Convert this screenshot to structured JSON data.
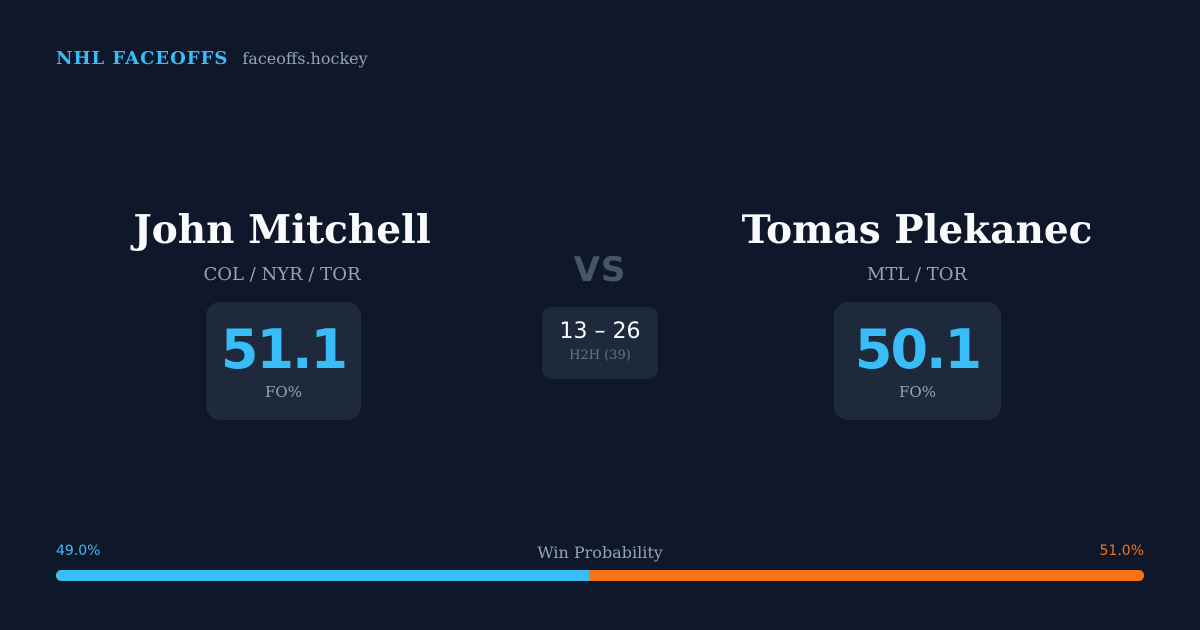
{
  "brand": {
    "name": "NHL FACEOFFS",
    "url": "faceoffs.hockey"
  },
  "players": [
    {
      "name": "John Mitchell",
      "teams": "COL / NYR / TOR",
      "fo_pct": "51.1",
      "fo_label": "FO%"
    },
    {
      "name": "Tomas Plekanec",
      "teams": "MTL / TOR",
      "fo_pct": "50.1",
      "fo_label": "FO%"
    }
  ],
  "matchup": {
    "vs_label": "VS",
    "h2h_score": "13 – 26",
    "h2h_label": "H2H (39)"
  },
  "win_probability": {
    "title": "Win Probability",
    "left_label": "49.0%",
    "right_label": "51.0%",
    "left_fraction": 0.49,
    "right_fraction": 0.51,
    "left_color": "#38bdf8",
    "right_color": "#f97316"
  },
  "colors": {
    "background": "#0f172a",
    "card": "#1e293b",
    "accent": "#38bdf8",
    "secondary_accent": "#f97316",
    "muted_text": "#94a3b8"
  }
}
